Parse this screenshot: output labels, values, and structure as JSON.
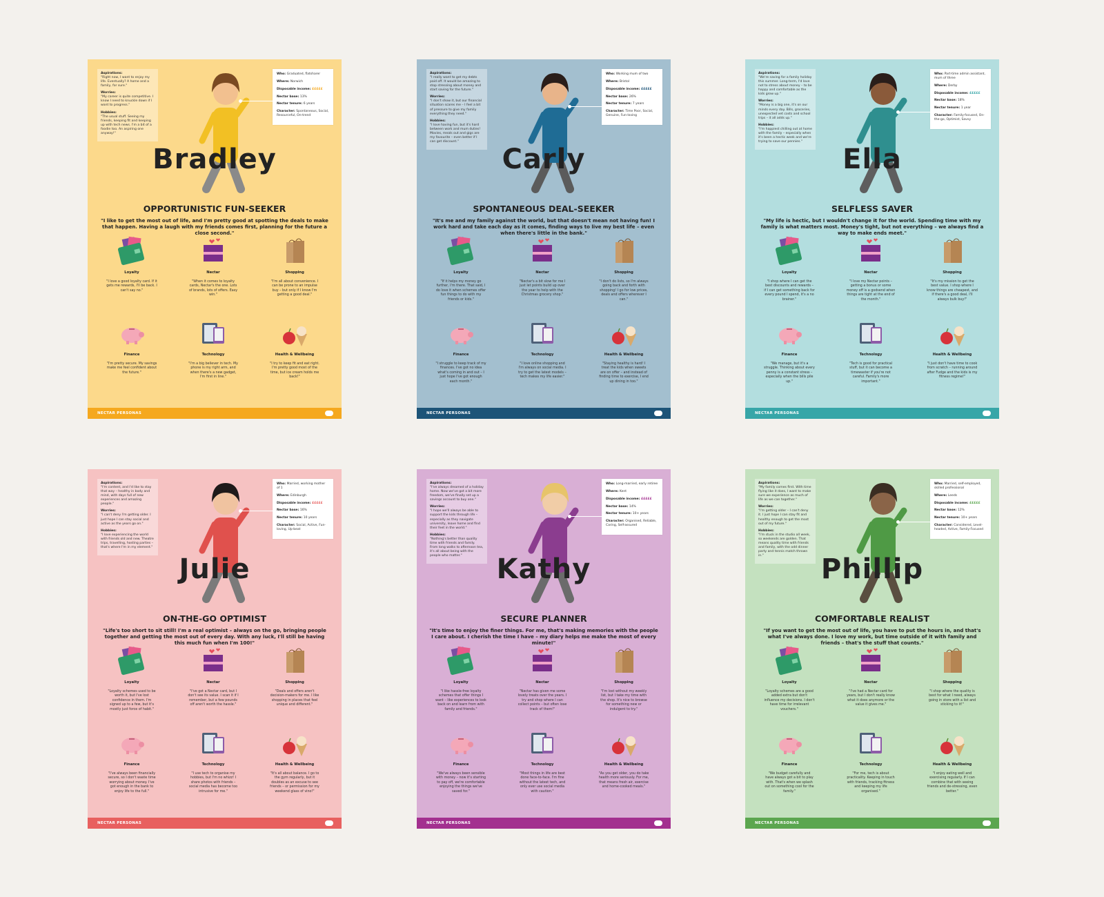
{
  "footer_label": "NECTAR PERSONAS",
  "category_labels": [
    "Loyalty",
    "Nectar",
    "Shopping",
    "Finance",
    "Technology",
    "Health & Wellbeing"
  ],
  "personas": [
    {
      "name": "Bradley",
      "bg": "#fcd98b",
      "accent": "#f5a81e",
      "aspirations": "\"Right now, I want to enjoy my life. Eventually? A home and a family, for sure.\"",
      "worries": "\"My career is quite competitive. I know I need to knuckle down if I want to progress.\"",
      "hobbies": "\"The usual stuff. Seeing my friends, keeping fit and keeping up with tech news. I'm a bit of a foodie too. An aspiring one anyway!\"",
      "who": "Graduated, flatsharer",
      "where": "Norwich",
      "income": "£££££",
      "base": "13%",
      "tenure": "6 years",
      "character": "Spontaneous, Social, Resourceful, On-trend",
      "title": "OPPORTUNISTIC FUN-SEEKER",
      "quote": "\"I like to get the most out of life, and I'm pretty good at spotting the deals to make that happen. Having a laugh with my friends comes first, planning for the future a close second.\"",
      "cats": [
        "\"I love a good loyalty card. If it gets me rewards, I'll be back. I can't say no.\"",
        "\"When it comes to loyalty cards, Nectar's the one. Lots of brands, lots of offers. Easy win.\"",
        "\"I'm all about convenience. I can be prone to an impulse buy – but only if I know I'm getting a good deal.\"",
        "\"I'm pretty secure. My savings make me feel confident about the future.\"",
        "\"I'm a big believer in tech. My phone is my right arm, and when there's a new gadget, I'm first in line.\"",
        "\"I try to keep fit and eat right. I'm pretty good most of the time, but ice cream holds me back!\""
      ]
    },
    {
      "name": "Carly",
      "bg": "#a3bfcf",
      "accent": "#1d5478",
      "aspirations": "\"I really want to get my debts paid off. It would be amazing to stop stressing about money and start saving for the future.\"",
      "worries": "\"I don't show it, but our financial situation scares me – I feel a bit of pressure to give my family everything they need.\"",
      "hobbies": "\"I love having fun, but it's hard between work and mum duties! Movies, meals out and gigs are my favourite – even better if I can get discount.\"",
      "who": "Working mum of two",
      "where": "Bristol",
      "income": "£££££",
      "base": "26%",
      "tenure": "7 years",
      "character": "Time Poor, Social, Genuine, Fun-loving",
      "title": "SPONTANEOUS DEAL-SEEKER",
      "quote": "\"It's me and my family against the world, but that doesn't mean not having fun! I work hard and take each day as it comes, finding ways to live my best life – even when there's little in the bank.\"",
      "cats": [
        "\"If it helps my money go further, I'm there. That said, I do love it when schemes offer fun things to do with my friends or kids.\"",
        "\"Nectar's a bit slow for me I just let points build up over the year to help with the Christmas grocery shop.\"",
        "\"I don't do lists, so I'm always going back and forth with shopping! I go for low prices, deals and offers wherever I can.\"",
        "\"I struggle to keep track of my finances. I've got no idea what's coming in and out – I just hope I've got enough each month.\"",
        "\"I love online shopping and I'm always on social media. I try to get the latest models – tech makes my life easier.\"",
        "\"Staying healthy is hard! I treat the kids when sweets are on offer – and instead of finding time to exercise, I end up dining in too.\""
      ]
    },
    {
      "name": "Ella",
      "bg": "#b3dedf",
      "accent": "#37a6a8",
      "aspirations": "\"We're saving for a family holiday this summer. Long-term, I'd love not to stress about money – to be happy and comfortable as the kids grow up.\"",
      "worries": "\"Money is a big one, it's on our minds every day. Bills, groceries, unexpected vet costs and school trips – it all adds up.\"",
      "hobbies": "\"I'm happiest chilling out at home with the family – especially when it's been a hectic week and we're trying to save our pennies.\"",
      "who": "Part-time admin assistant, mum of three",
      "where": "Derby",
      "income": "£££££",
      "base": "18%",
      "tenure": "1 year",
      "character": "Family-focused, On-the-go, Optimist, Savvy",
      "title": "SELFLESS SAVER",
      "quote": "\"My life is hectic, but I wouldn't change it for the world. Spending time with my family is what matters most. Money's tight, but not everything – we always find a way to make ends meet.\"",
      "cats": [
        "\"I shop where I can get the best discounts and rewards – if I can get something back for every pound I spend, it's a no brainer.\"",
        "\"I love my Nectar points – getting a bonus or some money off is a godsend when things are tight at the end of the month.\"",
        "\"It's my mission to get the best value. I shop where I know things are cheapest, and if there's a good deal, I'll always bulk buy!\"",
        "\"We manage, but it's a struggle. Thinking about every penny is a constant stress – especially when the bills pile up.\"",
        "\"Tech is good for practical stuff, but it can become a timewaster if you're not careful. Family's more important.\"",
        "\"I just don't have time to cook from scratch – running around after Fudge and the kids is my fitness regime!\""
      ]
    },
    {
      "name": "Julie",
      "bg": "#f6c2c2",
      "accent": "#e8605f",
      "aspirations": "\"I'm content, and I'd like to stay that way – healthy in body and mind, with days full of new experiences and amazing people.\"",
      "worries": "\"I can't deny I'm getting older. I just hope I can stay social and active as the years go on.\"",
      "hobbies": "\"I love experiencing the world with friends old and new. Theatre trips, travelling, hosting parties – that's where I'm in my element.\"",
      "who": "Married, working mother of 1",
      "where": "Edinburgh",
      "income": "£££££",
      "base": "16%",
      "tenure": "10 years",
      "character": "Social, Active, Fun-loving, Up-beat",
      "title": "ON-THE-GO OPTIMIST",
      "quote": "\"Life's too short to sit still! I'm a real optimist – always on the go, bringing people together and getting the most out of every day. With any luck, I'll still be having this much fun when I'm 100!\"",
      "cats": [
        "\"Loyalty schemes used to be worth it, but I've lost confidence in them. I'm signed up to a few, but it's mostly just force of habit.\"",
        "\"I've got a Nectar card, but I don't see its value. I scan it if I remember, but a few pounds off aren't worth the hassle.\"",
        "\"Deals and offers aren't decision-makers for me. I like shopping in places that feel unique and different.\"",
        "\"I've always been financially secure, so I don't waste time worrying about money. I've got enough in the bank to enjoy life to the full.\"",
        "\"I use tech to organise my hobbies, but I'm no whizz! I share photos with friends – social media has become too intrusive for me.\"",
        "\"It's all about balance. I go to the gym regularly, but it doubles as an excuse to see friends – or permission for my weekend glass of vino!\""
      ]
    },
    {
      "name": "Kathy",
      "bg": "#d9afd5",
      "accent": "#a3308f",
      "aspirations": "\"I've always dreamed of a holiday home. Now we've got a bit more freedom, we've finally set up a savings account to buy one.\"",
      "worries": "\"I hope we'll always be able to support the kids through life – especially as they navigate university, leave home and find their feet in the world.\"",
      "hobbies": "\"Nothing's better than quality time with friends and family. From long walks to afternoon tea, it's all about being with the people who matter.\"",
      "who": "Long-married, early retiree",
      "where": "Kent",
      "income": "£££££",
      "base": "14%",
      "tenure": "10+ years",
      "character": "Organised, Reliable, Caring, Self-assured",
      "title": "SECURE PLANNER",
      "quote": "\"It's time to enjoy the finer things. For me, that's making memories with the people I care about. I cherish the time I have – my diary helps me make the most of every minute!\"",
      "cats": [
        "\"I like hassle-free loyalty schemes that offer things I want – like experiences to look back on and learn from with family and friends.\"",
        "\"Nectar has given me some lovely treats over the years. I try and shop where I can collect points – but often lose track of them!\"",
        "\"I'm lost without my weekly list, but I take my time with the shop. It's nice to browse for something new or indulgent to try.\"",
        "\"We've always been sensible with money – now it's starting to pay off, we're comfortable enjoying the things we've saved for.\"",
        "\"Most things in life are best done face-to-face. I'm fine without the latest tech, and only ever use social media with caution.\"",
        "\"As you get older, you do take health more seriously. For me, that means fresh air, exercise and home-cooked meals.\""
      ]
    },
    {
      "name": "Phillip",
      "bg": "#c4e1bf",
      "accent": "#5ba64f",
      "aspirations": "\"My family comes first. With time flying like it does, I want to make sure we experience as much of life as we can together.\"",
      "worries": "\"I'm getting older – I can't deny it. I just hope I can stay fit and healthy enough to get the most out of my future.\"",
      "hobbies": "\"I'm stuck in the studio all week, so weekends are golden. That means quality time with friends and family, with the odd dinner party and tennis match thrown in.\"",
      "who": "Married, self-employed, skilled professional",
      "where": "Leeds",
      "income": "£££££",
      "base": "12%",
      "tenure": "10+ years",
      "character": "Considered, Level-headed, Active, Family-Focused",
      "title": "COMFORTABLE REALIST",
      "quote": "\"If you want to get the most out of life, you have to put the hours in, and that's what I've always done. I love my work, but time outside of it with family and friends – that's the stuff that counts.\"",
      "cats": [
        "\"Loyalty schemes are a good added extra but don't influence my decisions. I don't have time for irrelevant vouchers.\"",
        "\"I've had a Nectar card for years, but I don't really know what it does anymore or the value it gives me.\"",
        "\"I shop where the quality is best for what I need, always going in store with a list and sticking to it!\"",
        "\"We budget carefully and have always got a bit to play with. That's when we splash out on something cool for the family.\"",
        "\"For me, tech is about practicality. Keeping in touch with friends, tracking fitness and keeping my life organised.\"",
        "\"I enjoy eating well and exercising regularly. If I can combine that with seeing friends and de-stressing, even better.\""
      ]
    }
  ]
}
